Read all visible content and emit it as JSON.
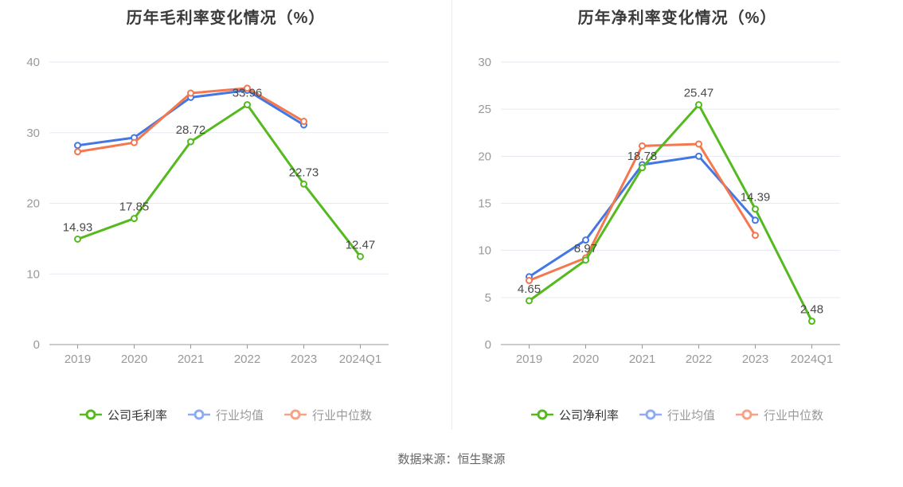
{
  "page": {
    "source_note": "数据来源：恒生聚源"
  },
  "colors": {
    "series": [
      "#55b91f",
      "#4377e4",
      "#f4774e"
    ],
    "legend_markers": [
      "#55b91f",
      "#8fabf3",
      "#f6a287"
    ],
    "legend_text_active": "#333333",
    "legend_text_muted": "#999999",
    "grid": "#e6eaf4",
    "axis_line": "#999999",
    "tick_label": "#999999",
    "data_label": "#4a4a4a",
    "title": "#3a3a3a"
  },
  "chart_data": [
    {
      "type": "line",
      "title": "历年毛利率变化情况（%）",
      "categories": [
        "2019",
        "2020",
        "2021",
        "2022",
        "2023",
        "2024Q1"
      ],
      "ylim": [
        0,
        40
      ],
      "ytick_step": 10,
      "grid": true,
      "legend_position": "bottom",
      "series": [
        {
          "key": "company",
          "name": "公司毛利率",
          "values": [
            14.93,
            17.85,
            28.72,
            33.96,
            22.73,
            12.47
          ],
          "show_labels": true
        },
        {
          "key": "industry-avg",
          "name": "行业均值",
          "values": [
            28.2,
            29.3,
            35.0,
            36.0,
            31.1,
            null
          ],
          "show_labels": false
        },
        {
          "key": "industry-median",
          "name": "行业中位数",
          "values": [
            27.3,
            28.6,
            35.6,
            36.3,
            31.6,
            null
          ],
          "show_labels": false
        }
      ]
    },
    {
      "type": "line",
      "title": "历年净利率变化情况（%）",
      "categories": [
        "2019",
        "2020",
        "2021",
        "2022",
        "2023",
        "2024Q1"
      ],
      "ylim": [
        0,
        30
      ],
      "ytick_step": 5,
      "grid": true,
      "legend_position": "bottom",
      "series": [
        {
          "key": "company",
          "name": "公司净利率",
          "values": [
            4.65,
            8.97,
            18.78,
            25.47,
            14.39,
            2.48
          ],
          "show_labels": true
        },
        {
          "key": "industry-avg",
          "name": "行业均值",
          "values": [
            7.2,
            11.1,
            19.1,
            20.0,
            13.2,
            null
          ],
          "show_labels": false
        },
        {
          "key": "industry-median",
          "name": "行业中位数",
          "values": [
            6.8,
            9.2,
            21.1,
            21.3,
            11.6,
            null
          ],
          "show_labels": false
        }
      ]
    }
  ]
}
